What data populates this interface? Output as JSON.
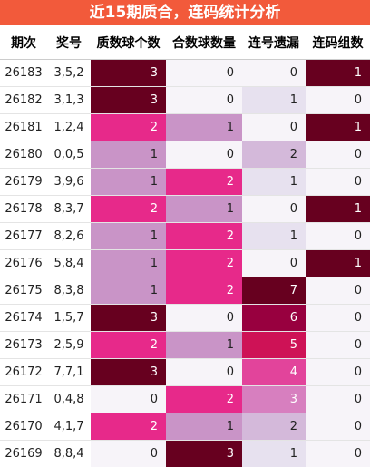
{
  "header": {
    "title": "近15期质合，连码统计分析"
  },
  "table": {
    "columns": [
      "期次",
      "奖号",
      "质数球个数",
      "合数球数量",
      "连号遗漏",
      "连码组数"
    ],
    "rows": [
      [
        "26183",
        "3,5,2",
        3,
        0,
        0,
        1
      ],
      [
        "26182",
        "3,1,3",
        3,
        0,
        1,
        0
      ],
      [
        "26181",
        "1,2,4",
        2,
        1,
        0,
        1
      ],
      [
        "26180",
        "0,0,5",
        1,
        0,
        2,
        0
      ],
      [
        "26179",
        "3,9,6",
        1,
        2,
        1,
        0
      ],
      [
        "26178",
        "8,3,7",
        2,
        1,
        0,
        1
      ],
      [
        "26177",
        "8,2,6",
        1,
        2,
        1,
        0
      ],
      [
        "26176",
        "5,8,4",
        1,
        2,
        0,
        1
      ],
      [
        "26175",
        "8,3,8",
        1,
        2,
        7,
        0
      ],
      [
        "26174",
        "1,5,7",
        3,
        0,
        6,
        0
      ],
      [
        "26173",
        "2,5,9",
        2,
        1,
        5,
        0
      ],
      [
        "26172",
        "7,7,1",
        3,
        0,
        4,
        0
      ],
      [
        "26171",
        "0,4,8",
        0,
        2,
        3,
        0
      ],
      [
        "26170",
        "4,1,7",
        2,
        1,
        2,
        0
      ],
      [
        "26169",
        "8,8,4",
        0,
        3,
        1,
        0
      ]
    ],
    "heat_colors": {
      "2": [
        "#f7f4f9",
        "#c994c7",
        "#e7298a",
        "#67001f"
      ],
      "3": [
        "#f7f4f9",
        "#c994c7",
        "#e7298a",
        "#67001f"
      ],
      "4": [
        "#f7f4f9",
        "#e7e1ef",
        "#d4b9da",
        "#d77fbf",
        "#e2449b",
        "#ce1256",
        "#98003f",
        "#67001f"
      ],
      "5": [
        "#f7f4f9",
        "#67001f"
      ]
    }
  }
}
